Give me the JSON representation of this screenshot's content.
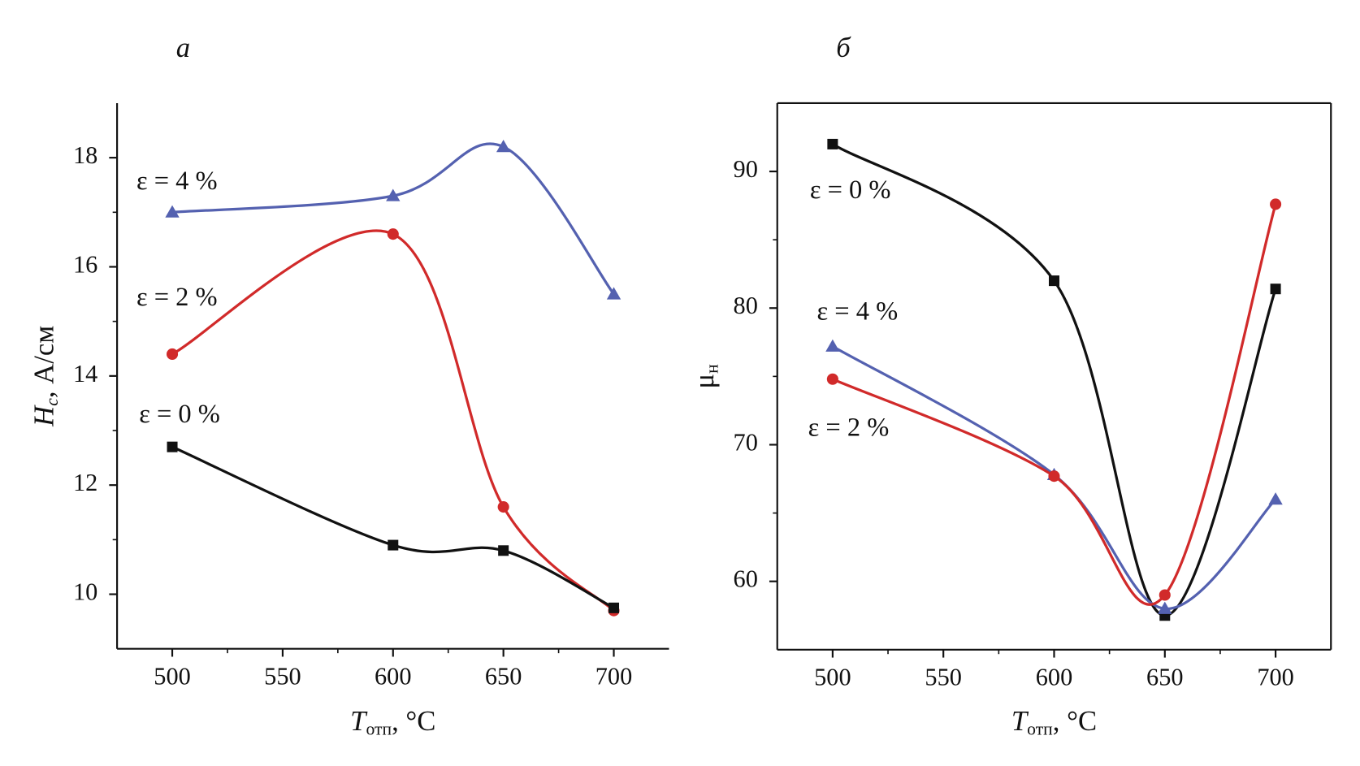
{
  "chart_data": [
    {
      "type": "line",
      "title": "а",
      "xlabel": [
        "T",
        "отп",
        ", °C"
      ],
      "ylabel": [
        "H",
        "c",
        ", А/см"
      ],
      "x": [
        500,
        600,
        650,
        700
      ],
      "xlim": [
        475,
        725
      ],
      "xticks": [
        500,
        550,
        600,
        650,
        700
      ],
      "ylim": [
        9,
        19
      ],
      "yticks": [
        10,
        12,
        14,
        16,
        18
      ],
      "box": false,
      "series": [
        {
          "name": "ε = 4 %",
          "color": "#5461b0",
          "marker": "triangle",
          "values": [
            17.0,
            17.3,
            18.2,
            15.5
          ]
        },
        {
          "name": "ε = 2 %",
          "color": "#d12a2a",
          "marker": "circle",
          "values": [
            14.4,
            16.6,
            11.6,
            9.7
          ]
        },
        {
          "name": "ε = 0 %",
          "color": "#111111",
          "marker": "square",
          "values": [
            12.7,
            10.9,
            10.8,
            9.75
          ]
        }
      ]
    },
    {
      "type": "line",
      "title": "б",
      "xlabel": [
        "T",
        "отп",
        ", °C"
      ],
      "ylabel": [
        "μ",
        "н",
        ""
      ],
      "x": [
        500,
        600,
        650,
        700
      ],
      "xlim": [
        475,
        725
      ],
      "xticks": [
        500,
        550,
        600,
        650,
        700
      ],
      "ylim": [
        55,
        95
      ],
      "yticks": [
        60,
        70,
        80,
        90
      ],
      "box": true,
      "series": [
        {
          "name": "ε = 0 %",
          "color": "#111111",
          "marker": "square",
          "values": [
            92,
            82,
            57.5,
            81.4
          ]
        },
        {
          "name": "ε = 4 %",
          "color": "#5461b0",
          "marker": "triangle",
          "values": [
            77.2,
            67.8,
            58,
            66
          ]
        },
        {
          "name": "ε = 2 %",
          "color": "#d12a2a",
          "marker": "circle",
          "values": [
            74.8,
            67.7,
            59,
            87.6
          ]
        }
      ]
    }
  ]
}
